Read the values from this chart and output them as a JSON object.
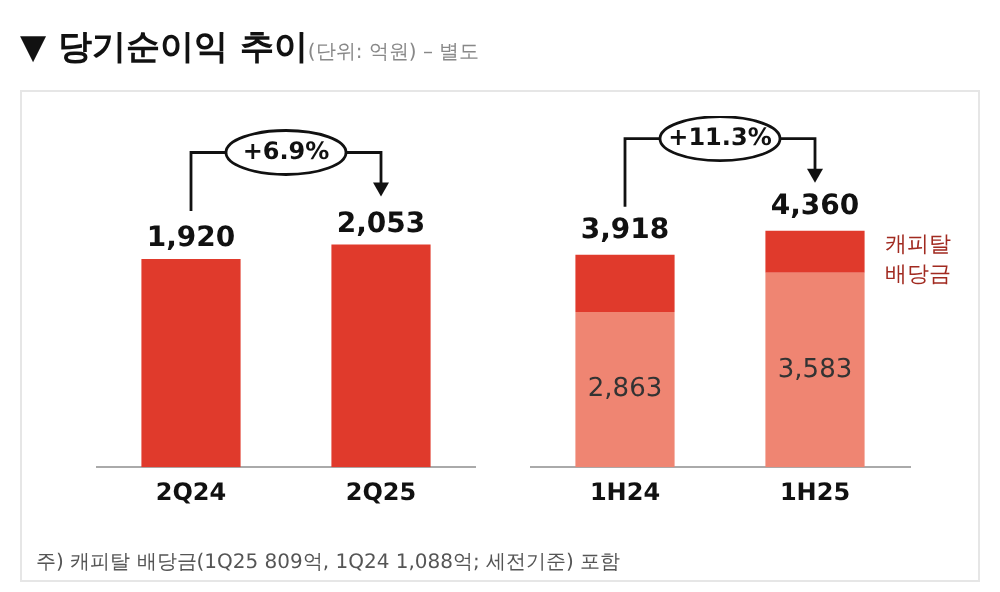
{
  "chart_data": [
    {
      "type": "bar",
      "title": "▼ 당기순이익 추이",
      "subtitle": "(단위: 억원) – 별도",
      "categories": [
        "2Q24",
        "2Q25"
      ],
      "values": [
        1920,
        2053
      ],
      "color": "#e03a2c",
      "value_labels": [
        "1,920",
        "2,053"
      ],
      "tick_labels": "x",
      "annotations": [
        "+6.9%"
      ]
    },
    {
      "type": "bar",
      "categories": [
        "1H24",
        "1H25"
      ],
      "stacked": true,
      "series": [
        {
          "color": "#ef8572",
          "values": [
            2863,
            3583
          ],
          "value_labels": [
            "2,863",
            "3,583"
          ]
        },
        {
          "name": "캐피탈 배당금",
          "color": "#e03a2c",
          "values": [
            1055,
            777
          ]
        }
      ],
      "totals": [
        "3,918",
        "4,360"
      ],
      "tick_labels": "x",
      "annotations": [
        "+11.3%",
        "주) 캐피탈 배당금(1Q25 809억, 1Q24 1,088억; 세전기준) 포함"
      ]
    }
  ]
}
